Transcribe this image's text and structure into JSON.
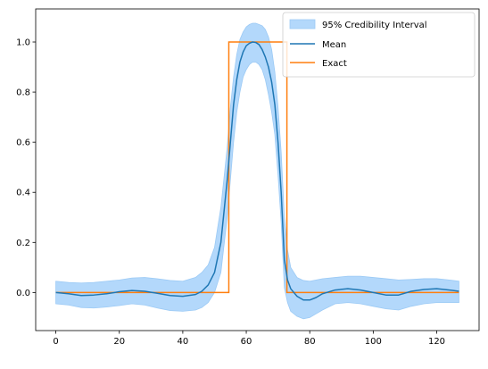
{
  "chart_data": {
    "type": "line",
    "title": "",
    "xlabel": "",
    "ylabel": "",
    "xlim": [
      -6.35,
      133.35
    ],
    "ylim": [
      -0.152,
      1.132
    ],
    "xticks": [
      0,
      20,
      40,
      60,
      80,
      100,
      120
    ],
    "yticks": [
      0.0,
      0.2,
      0.4,
      0.6,
      0.8,
      1.0
    ],
    "xtick_labels": [
      "0",
      "20",
      "40",
      "60",
      "80",
      "100",
      "120"
    ],
    "ytick_labels": [
      "0.0",
      "0.2",
      "0.4",
      "0.6",
      "0.8",
      "1.0"
    ],
    "grid": false,
    "legend_position": "top-right",
    "legend": {
      "interval": "95% Credibility Interval",
      "mean": "Mean",
      "exact": "Exact"
    },
    "colors": {
      "interval": "#b3d8fb",
      "interval_edge": "#9ccaf5",
      "mean": "#1f77b4",
      "exact": "#ff7f0e"
    },
    "x": [
      0,
      4,
      8,
      12,
      16,
      20,
      24,
      28,
      32,
      36,
      40,
      44,
      46,
      48,
      50,
      52,
      54,
      55,
      56,
      57,
      58,
      59,
      60,
      61,
      62,
      63,
      64,
      65,
      66,
      67,
      68,
      69,
      70,
      71,
      72,
      73,
      74,
      76,
      78,
      80,
      82,
      84,
      88,
      92,
      96,
      100,
      104,
      108,
      112,
      116,
      120,
      124,
      127
    ],
    "series": [
      {
        "name": "Mean",
        "values": [
          0.0,
          -0.005,
          -0.012,
          -0.01,
          -0.005,
          0.003,
          0.008,
          0.005,
          -0.003,
          -0.012,
          -0.015,
          -0.008,
          0.005,
          0.03,
          0.08,
          0.2,
          0.45,
          0.6,
          0.75,
          0.85,
          0.92,
          0.96,
          0.985,
          0.995,
          1.0,
          0.998,
          0.99,
          0.97,
          0.94,
          0.9,
          0.84,
          0.75,
          0.6,
          0.4,
          0.13,
          0.05,
          0.015,
          -0.015,
          -0.03,
          -0.03,
          -0.02,
          -0.005,
          0.01,
          0.015,
          0.01,
          0.0,
          -0.01,
          -0.01,
          0.005,
          0.012,
          0.015,
          0.01,
          0.005
        ]
      }
    ],
    "interval_upper": [
      0.045,
      0.04,
      0.038,
      0.04,
      0.045,
      0.05,
      0.058,
      0.06,
      0.055,
      0.048,
      0.045,
      0.06,
      0.08,
      0.11,
      0.18,
      0.34,
      0.58,
      0.74,
      0.86,
      0.95,
      1.01,
      1.04,
      1.06,
      1.07,
      1.075,
      1.075,
      1.07,
      1.065,
      1.05,
      1.02,
      0.97,
      0.88,
      0.74,
      0.56,
      0.3,
      0.17,
      0.1,
      0.06,
      0.048,
      0.045,
      0.05,
      0.055,
      0.06,
      0.065,
      0.065,
      0.06,
      0.055,
      0.05,
      0.052,
      0.055,
      0.055,
      0.05,
      0.045
    ],
    "interval_lower": [
      -0.045,
      -0.05,
      -0.06,
      -0.062,
      -0.058,
      -0.052,
      -0.045,
      -0.05,
      -0.062,
      -0.072,
      -0.075,
      -0.07,
      -0.06,
      -0.04,
      0.0,
      0.08,
      0.3,
      0.45,
      0.6,
      0.72,
      0.8,
      0.86,
      0.89,
      0.91,
      0.92,
      0.92,
      0.91,
      0.89,
      0.85,
      0.79,
      0.72,
      0.63,
      0.47,
      0.28,
      0.02,
      -0.04,
      -0.075,
      -0.095,
      -0.105,
      -0.1,
      -0.085,
      -0.07,
      -0.045,
      -0.04,
      -0.045,
      -0.055,
      -0.065,
      -0.07,
      -0.055,
      -0.045,
      -0.04,
      -0.04,
      -0.04
    ],
    "exact": {
      "name": "Exact",
      "x": [
        0,
        54.5,
        54.5,
        72.8,
        72.8,
        127
      ],
      "values": [
        0,
        0,
        1,
        1,
        0,
        0
      ]
    }
  }
}
